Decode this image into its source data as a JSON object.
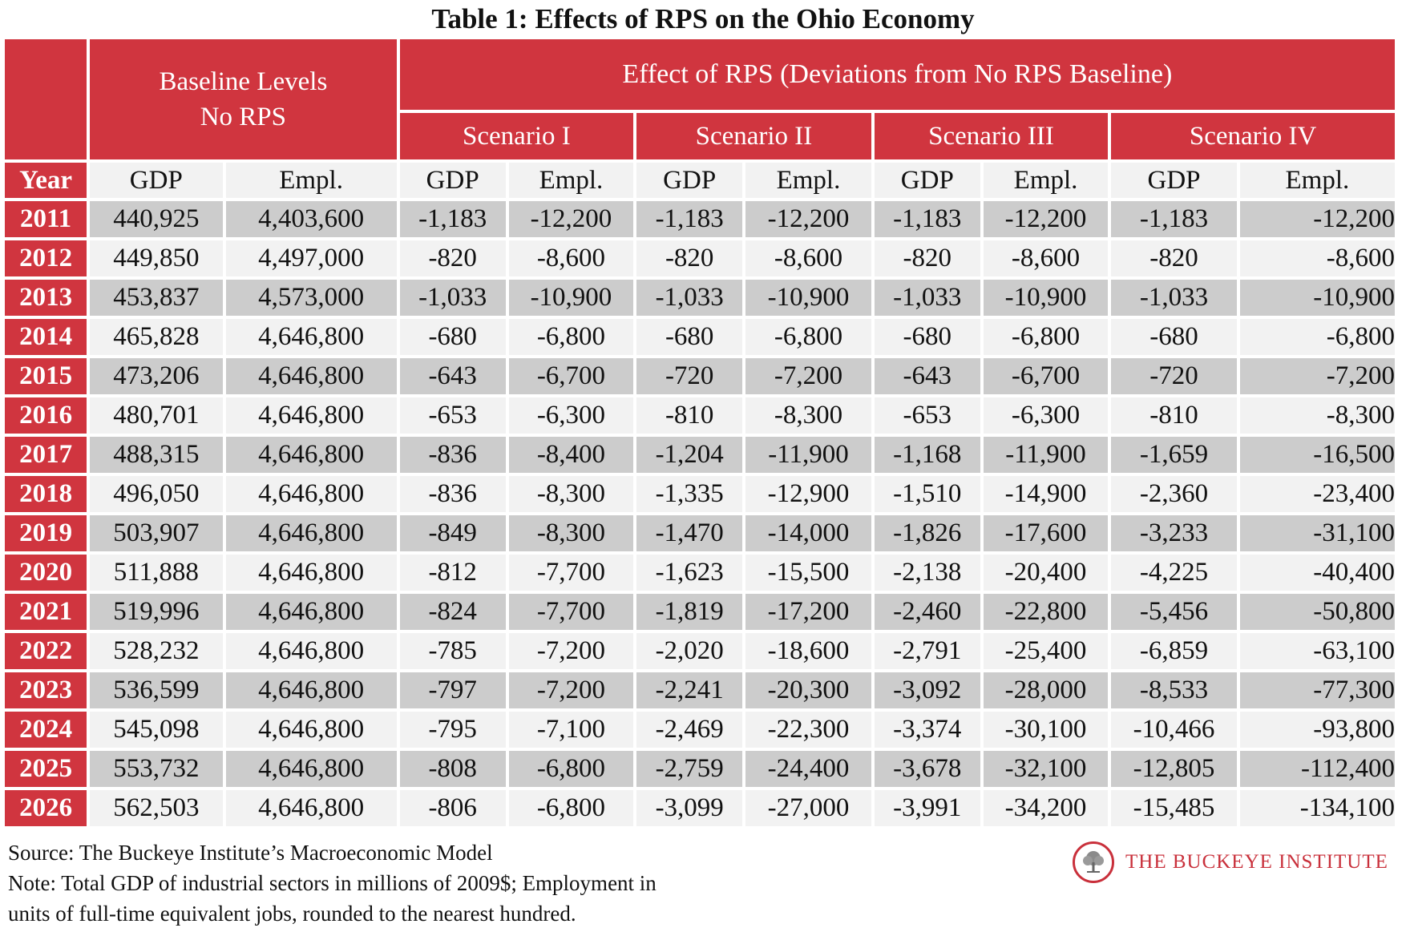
{
  "title": "Table 1: Effects of RPS on the Ohio Economy",
  "header": {
    "baseline_line1": "Baseline Levels",
    "baseline_line2": "No RPS",
    "effect": "Effect of RPS (Deviations from No RPS Baseline)",
    "scenarios": [
      "Scenario I",
      "Scenario II",
      "Scenario III",
      "Scenario IV"
    ],
    "year_label": "Year",
    "gdp_label": "GDP",
    "empl_label": "Empl."
  },
  "rows": [
    {
      "year": "2011",
      "base_gdp": "440,925",
      "base_empl": "4,403,600",
      "s1_gdp": "-1,183",
      "s1_empl": "-12,200",
      "s2_gdp": "-1,183",
      "s2_empl": "-12,200",
      "s3_gdp": "-1,183",
      "s3_empl": "-12,200",
      "s4_gdp": "-1,183",
      "s4_empl": "-12,200"
    },
    {
      "year": "2012",
      "base_gdp": "449,850",
      "base_empl": "4,497,000",
      "s1_gdp": "-820",
      "s1_empl": "-8,600",
      "s2_gdp": "-820",
      "s2_empl": "-8,600",
      "s3_gdp": "-820",
      "s3_empl": "-8,600",
      "s4_gdp": "-820",
      "s4_empl": "-8,600"
    },
    {
      "year": "2013",
      "base_gdp": "453,837",
      "base_empl": "4,573,000",
      "s1_gdp": "-1,033",
      "s1_empl": "-10,900",
      "s2_gdp": "-1,033",
      "s2_empl": "-10,900",
      "s3_gdp": "-1,033",
      "s3_empl": "-10,900",
      "s4_gdp": "-1,033",
      "s4_empl": "-10,900"
    },
    {
      "year": "2014",
      "base_gdp": "465,828",
      "base_empl": "4,646,800",
      "s1_gdp": "-680",
      "s1_empl": "-6,800",
      "s2_gdp": "-680",
      "s2_empl": "-6,800",
      "s3_gdp": "-680",
      "s3_empl": "-6,800",
      "s4_gdp": "-680",
      "s4_empl": "-6,800"
    },
    {
      "year": "2015",
      "base_gdp": "473,206",
      "base_empl": "4,646,800",
      "s1_gdp": "-643",
      "s1_empl": "-6,700",
      "s2_gdp": "-720",
      "s2_empl": "-7,200",
      "s3_gdp": "-643",
      "s3_empl": "-6,700",
      "s4_gdp": "-720",
      "s4_empl": "-7,200"
    },
    {
      "year": "2016",
      "base_gdp": "480,701",
      "base_empl": "4,646,800",
      "s1_gdp": "-653",
      "s1_empl": "-6,300",
      "s2_gdp": "-810",
      "s2_empl": "-8,300",
      "s3_gdp": "-653",
      "s3_empl": "-6,300",
      "s4_gdp": "-810",
      "s4_empl": "-8,300"
    },
    {
      "year": "2017",
      "base_gdp": "488,315",
      "base_empl": "4,646,800",
      "s1_gdp": "-836",
      "s1_empl": "-8,400",
      "s2_gdp": "-1,204",
      "s2_empl": "-11,900",
      "s3_gdp": "-1,168",
      "s3_empl": "-11,900",
      "s4_gdp": "-1,659",
      "s4_empl": "-16,500"
    },
    {
      "year": "2018",
      "base_gdp": "496,050",
      "base_empl": "4,646,800",
      "s1_gdp": "-836",
      "s1_empl": "-8,300",
      "s2_gdp": "-1,335",
      "s2_empl": "-12,900",
      "s3_gdp": "-1,510",
      "s3_empl": "-14,900",
      "s4_gdp": "-2,360",
      "s4_empl": "-23,400"
    },
    {
      "year": "2019",
      "base_gdp": "503,907",
      "base_empl": "4,646,800",
      "s1_gdp": "-849",
      "s1_empl": "-8,300",
      "s2_gdp": "-1,470",
      "s2_empl": "-14,000",
      "s3_gdp": "-1,826",
      "s3_empl": "-17,600",
      "s4_gdp": "-3,233",
      "s4_empl": "-31,100"
    },
    {
      "year": "2020",
      "base_gdp": "511,888",
      "base_empl": "4,646,800",
      "s1_gdp": "-812",
      "s1_empl": "-7,700",
      "s2_gdp": "-1,623",
      "s2_empl": "-15,500",
      "s3_gdp": "-2,138",
      "s3_empl": "-20,400",
      "s4_gdp": "-4,225",
      "s4_empl": "-40,400"
    },
    {
      "year": "2021",
      "base_gdp": "519,996",
      "base_empl": "4,646,800",
      "s1_gdp": "-824",
      "s1_empl": "-7,700",
      "s2_gdp": "-1,819",
      "s2_empl": "-17,200",
      "s3_gdp": "-2,460",
      "s3_empl": "-22,800",
      "s4_gdp": "-5,456",
      "s4_empl": "-50,800"
    },
    {
      "year": "2022",
      "base_gdp": "528,232",
      "base_empl": "4,646,800",
      "s1_gdp": "-785",
      "s1_empl": "-7,200",
      "s2_gdp": "-2,020",
      "s2_empl": "-18,600",
      "s3_gdp": "-2,791",
      "s3_empl": "-25,400",
      "s4_gdp": "-6,859",
      "s4_empl": "-63,100"
    },
    {
      "year": "2023",
      "base_gdp": "536,599",
      "base_empl": "4,646,800",
      "s1_gdp": "-797",
      "s1_empl": "-7,200",
      "s2_gdp": "-2,241",
      "s2_empl": "-20,300",
      "s3_gdp": "-3,092",
      "s3_empl": "-28,000",
      "s4_gdp": "-8,533",
      "s4_empl": "-77,300"
    },
    {
      "year": "2024",
      "base_gdp": "545,098",
      "base_empl": "4,646,800",
      "s1_gdp": "-795",
      "s1_empl": "-7,100",
      "s2_gdp": "-2,469",
      "s2_empl": "-22,300",
      "s3_gdp": "-3,374",
      "s3_empl": "-30,100",
      "s4_gdp": "-10,466",
      "s4_empl": "-93,800"
    },
    {
      "year": "2025",
      "base_gdp": "553,732",
      "base_empl": "4,646,800",
      "s1_gdp": "-808",
      "s1_empl": "-6,800",
      "s2_gdp": "-2,759",
      "s2_empl": "-24,400",
      "s3_gdp": "-3,678",
      "s3_empl": "-32,100",
      "s4_gdp": "-12,805",
      "s4_empl": "-112,400"
    },
    {
      "year": "2026",
      "base_gdp": "562,503",
      "base_empl": "4,646,800",
      "s1_gdp": "-806",
      "s1_empl": "-6,800",
      "s2_gdp": "-3,099",
      "s2_empl": "-27,000",
      "s3_gdp": "-3,991",
      "s3_empl": "-34,200",
      "s4_gdp": "-15,485",
      "s4_empl": "-134,100"
    }
  ],
  "footer": {
    "source": "Source: The Buckeye Institute’s Macroeconomic Model",
    "note_line1": "Note: Total GDP of industrial sectors in millions of 2009$; Employment in",
    "note_line2": "units of full-time equivalent jobs, rounded to the nearest hundred."
  },
  "logo": {
    "text": "THE BUCKEYE INSTITUTE",
    "icon": "tree-seal-icon",
    "color": "#c9303b"
  },
  "colors": {
    "header_red": "#d0353f",
    "row_dark": "#cccccc",
    "row_light": "#f2f2f2"
  }
}
